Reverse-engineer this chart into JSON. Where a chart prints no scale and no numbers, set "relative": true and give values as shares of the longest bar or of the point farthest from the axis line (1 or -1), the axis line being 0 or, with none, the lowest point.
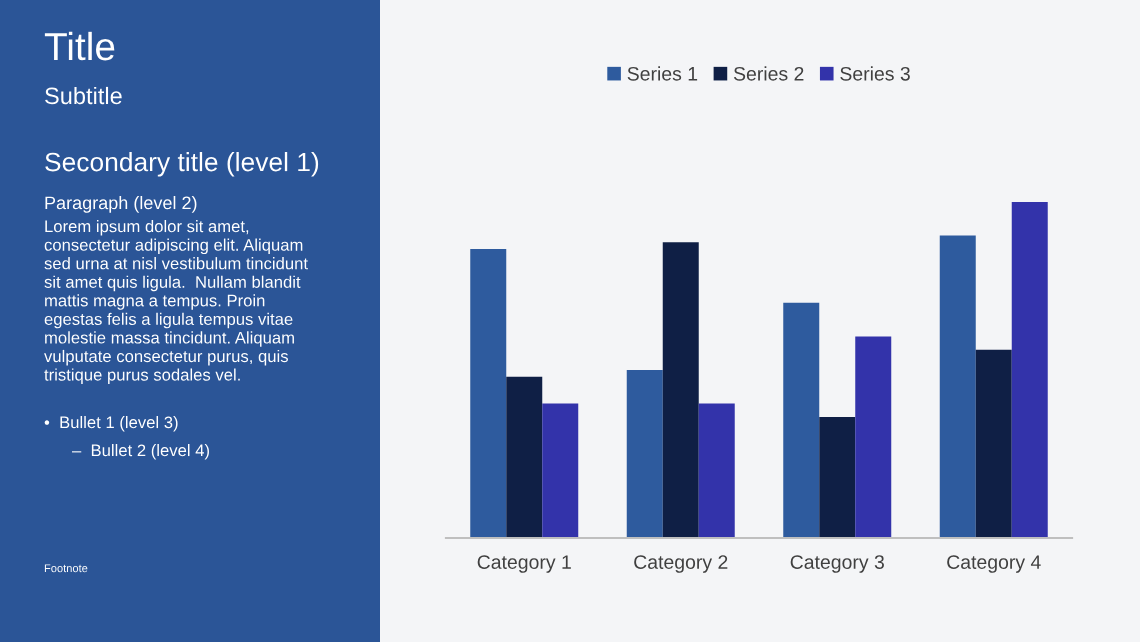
{
  "chart_data": {
    "type": "bar",
    "title": "Title",
    "subtitle": "Subtitle",
    "relative": true,
    "categories": [
      "Category 1",
      "Category 2",
      "Category 3",
      "Category 4"
    ],
    "series": [
      {
        "name": "Series 1",
        "color": "#2e5b9e",
        "values": [
          0.86,
          0.5,
          0.7,
          0.9
        ]
      },
      {
        "name": "Series 2",
        "color": "#0f1f45",
        "values": [
          0.48,
          0.88,
          0.36,
          0.56
        ]
      },
      {
        "name": "Series 3",
        "color": "#3333aa",
        "values": [
          0.4,
          0.4,
          0.6,
          1.0
        ]
      }
    ],
    "legend": "top",
    "grid": false,
    "annotations": [
      "Secondary title (level 1)",
      "Paragraph (level 2)",
      "Lorem ipsum dolor sit amet,\nconsectetur adipiscing elit. Aliquam\nsed urna at nisl vestibulum tincidunt\nsit amet quis ligula.  Nullam blandit\nmattis magna a tempus. Proin\negestas felis a ligula tempus vitae\nmolestie massa tincidunt. Aliquam\nvulputate consectetur purus, quis\ntristique purus sodales vel.",
      "•  Bullet 1 (level 3)",
      "–  Bullet 2 (level 4)",
      "Footnote"
    ]
  }
}
